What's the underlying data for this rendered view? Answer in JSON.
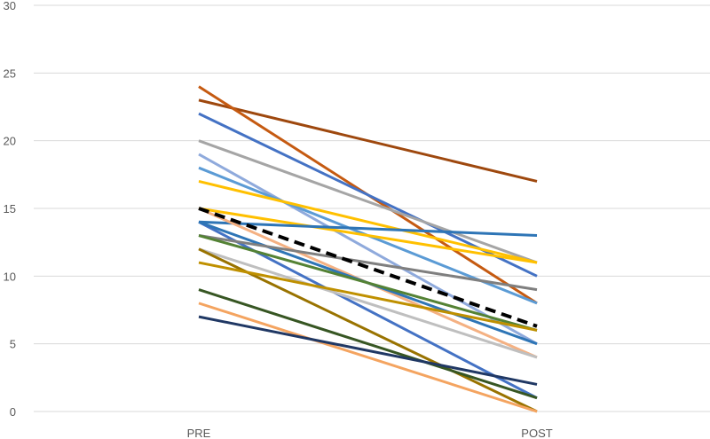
{
  "chart_data": {
    "type": "line",
    "categories": [
      "PRE",
      "POST"
    ],
    "ylim": [
      0,
      30
    ],
    "yticks": [
      0,
      5,
      10,
      15,
      20,
      25,
      30
    ],
    "grid": true,
    "legend": "none",
    "series": [
      {
        "values": [
          23,
          17
        ],
        "color": "#9e480e"
      },
      {
        "values": [
          24,
          8
        ],
        "color": "#c55a11"
      },
      {
        "values": [
          22,
          10
        ],
        "color": "#4472c4"
      },
      {
        "values": [
          20,
          11
        ],
        "color": "#a5a5a5"
      },
      {
        "values": [
          19,
          5
        ],
        "color": "#8faadc"
      },
      {
        "values": [
          18,
          8
        ],
        "color": "#5b9bd5"
      },
      {
        "values": [
          17,
          11
        ],
        "color": "#ffc000"
      },
      {
        "values": [
          15,
          11
        ],
        "color": "#ffc000"
      },
      {
        "values": [
          14,
          13
        ],
        "color": "#2e75b6"
      },
      {
        "values": [
          15,
          4
        ],
        "color": "#f4b183"
      },
      {
        "values": [
          14,
          1
        ],
        "color": "#4472c4"
      },
      {
        "values": [
          14,
          5
        ],
        "color": "#2e75b6"
      },
      {
        "values": [
          13,
          9
        ],
        "color": "#7f7f7f"
      },
      {
        "values": [
          13,
          6
        ],
        "color": "#548235"
      },
      {
        "values": [
          12,
          4
        ],
        "color": "#bfbfbf"
      },
      {
        "values": [
          12,
          0
        ],
        "color": "#997300"
      },
      {
        "values": [
          11,
          6
        ],
        "color": "#bf9000"
      },
      {
        "values": [
          9,
          1
        ],
        "color": "#375623"
      },
      {
        "values": [
          8,
          0
        ],
        "color": "#f4a460"
      },
      {
        "values": [
          7,
          2
        ],
        "color": "#203864"
      },
      {
        "values": [
          15,
          6.3
        ],
        "color": "#000000",
        "dashed": true
      }
    ]
  }
}
